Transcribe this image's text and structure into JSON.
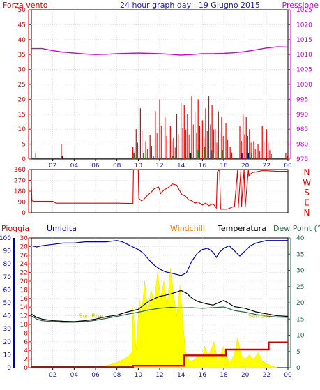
{
  "title": "24 hour graph day : 19 Giugno 2015",
  "x_tick_labels": [
    "02",
    "04",
    "06",
    "08",
    "10",
    "12",
    "14",
    "16",
    "18",
    "20",
    "22",
    "00"
  ],
  "colors": {
    "axis_red": "#dd0000",
    "wind": "#ee0000",
    "gust_green": "#009900",
    "gust_blue": "#0000aa",
    "pressure": "#cc00cc",
    "direction": "#dd0000",
    "humidity": "#0000aa",
    "temperature": "#000000",
    "dewpoint": "#226644",
    "solar": "#ffff00",
    "rain": "#cc0000",
    "windchill_label": "#dd7700",
    "humidity_axis": "#0000aa",
    "dewpoint_axis": "#226644"
  },
  "chart_data": [
    {
      "type": "line",
      "name": "wind-pressure",
      "left_label": "Forza vento",
      "right_label": "Pressione",
      "left_ticks": [
        "50",
        "45",
        "40",
        "35",
        "30",
        "25",
        "20",
        "15",
        "10",
        "5",
        "0"
      ],
      "right_ticks": [
        "1025",
        "1020",
        "1015",
        "1010",
        "1005",
        "1000",
        "995",
        "990",
        "985",
        "980",
        "975"
      ],
      "left_ylim": [
        0,
        50
      ],
      "right_ylim": [
        975,
        1025
      ],
      "xlim_hours": [
        0,
        24
      ],
      "grid": true,
      "series": [
        {
          "key": "pressure",
          "axis": "right",
          "x": [
            0,
            1,
            2,
            3,
            4,
            5,
            6,
            7,
            8,
            9,
            10,
            11,
            12,
            13,
            14,
            15,
            16,
            17,
            18,
            19,
            20,
            21,
            22,
            23,
            24
          ],
          "values": [
            1012,
            1012,
            1011.3,
            1010.8,
            1010.5,
            1010.2,
            1010,
            1010.1,
            1010.3,
            1010.4,
            1010.5,
            1010.4,
            1010.3,
            1010.1,
            1009.8,
            1010,
            1010.3,
            1010.3,
            1010.4,
            1010.6,
            1011,
            1011.6,
            1012.2,
            1012.6,
            1012.5
          ]
        },
        {
          "key": "wind",
          "style": "spikes",
          "x": [
            0.4,
            2.8,
            9.5,
            9.8,
            10.2,
            10.7,
            11.1,
            11.6,
            12.0,
            12.5,
            13.0,
            13.3,
            13.6,
            14.0,
            14.3,
            14.6,
            15.0,
            15.3,
            15.6,
            16.0,
            16.3,
            16.6,
            16.9,
            17.2,
            17.5,
            17.8,
            18.2,
            18.6,
            19.5,
            19.8,
            20.1,
            20.4,
            20.8,
            21.2,
            21.6,
            22.0,
            22.3,
            23.8
          ],
          "values": [
            2,
            5,
            4,
            10,
            17,
            6,
            8,
            16,
            20,
            14,
            11,
            7,
            15,
            19,
            18,
            15,
            21,
            16,
            20,
            13,
            17,
            21,
            18,
            10,
            16,
            14,
            12,
            4,
            11,
            15,
            14,
            10,
            6,
            5,
            11,
            10,
            3,
            2
          ]
        },
        {
          "key": "gust_green",
          "style": "spikes",
          "x": [
            9.6,
            10.5,
            13.2,
            14.8,
            15.6,
            16.2,
            17.0,
            17.9,
            20.6
          ],
          "values": [
            2,
            2,
            1,
            2,
            3,
            4,
            2,
            3,
            2
          ]
        },
        {
          "key": "gust_blue",
          "style": "spikes",
          "x": [
            2.9,
            11.4,
            14.9,
            16.8,
            19.7,
            20.3
          ],
          "values": [
            1,
            1,
            2,
            3,
            2,
            2
          ]
        }
      ]
    },
    {
      "type": "line",
      "name": "wind-direction",
      "left_ticks": [
        "360",
        "270",
        "180",
        "90",
        "0"
      ],
      "right_ticks": [
        "N",
        "W",
        "S",
        "E",
        "N"
      ],
      "ylim": [
        0,
        360
      ],
      "xlim_hours": [
        0,
        24
      ],
      "grid": true,
      "series": [
        {
          "key": "direction",
          "x": [
            0,
            0.05,
            0.3,
            1.0,
            2.0,
            2.3,
            3.0,
            4.0,
            6.0,
            8.0,
            9.5,
            9.55,
            9.7,
            10.0,
            10.05,
            10.3,
            10.5,
            10.9,
            11.2,
            11.5,
            11.9,
            12.1,
            12.4,
            12.8,
            13.2,
            13.6,
            13.9,
            14.1,
            14.4,
            14.7,
            15.0,
            15.3,
            15.6,
            16.0,
            16.3,
            16.6,
            17.0,
            17.3,
            17.4,
            17.6,
            17.7,
            18.0,
            18.3,
            18.6,
            19.0,
            19.3,
            19.35,
            19.6,
            19.65,
            19.9,
            20.0,
            20.3,
            20.35,
            20.6,
            20.7,
            21.0,
            21.3,
            21.5,
            22.0,
            23.0,
            24.0
          ],
          "values": [
            240,
            100,
            95,
            95,
            95,
            80,
            80,
            80,
            80,
            80,
            78,
            360,
            360,
            360,
            120,
            100,
            110,
            150,
            170,
            200,
            215,
            160,
            190,
            210,
            240,
            230,
            180,
            150,
            140,
            110,
            100,
            80,
            90,
            65,
            80,
            60,
            75,
            40,
            340,
            360,
            30,
            30,
            30,
            40,
            55,
            360,
            40,
            360,
            50,
            360,
            45,
            360,
            310,
            330,
            335,
            340,
            345,
            350,
            350,
            345,
            345
          ]
        }
      ]
    },
    {
      "type": "line",
      "name": "temp-humidity-rain",
      "labels": [
        "Pioggia",
        "Umidita",
        "Windchill",
        "Temperatura",
        "Dew Point (°C"
      ],
      "rain_ticks": [
        "100",
        "90",
        "80",
        "70",
        "60",
        "50",
        "40",
        "30",
        "20",
        "10",
        "0"
      ],
      "left_ticks": [
        "30",
        "28",
        "26",
        "24",
        "22",
        "20",
        "18",
        "16",
        "14",
        "12",
        "10",
        "8",
        "6",
        "4",
        "2",
        "0"
      ],
      "right_ticks": [
        "40",
        "35",
        "30",
        "25",
        "20",
        "15",
        "10",
        "5",
        "0"
      ],
      "left_ylim": [
        0,
        30
      ],
      "right_ylim": [
        0,
        40
      ],
      "xlim_hours": [
        0,
        24
      ],
      "grid": true,
      "annotations": [
        {
          "text": "Sun Rise",
          "x": 5.6,
          "y": 11.5
        },
        {
          "text": "Sun Set",
          "x": 21.3,
          "y": 11.5
        }
      ],
      "series": [
        {
          "key": "humidity",
          "axis": "rain",
          "x": [
            0,
            0.5,
            1,
            2,
            3,
            4,
            5,
            6,
            7,
            8,
            8.5,
            9,
            9.5,
            10,
            10.5,
            11,
            11.5,
            12,
            12.5,
            13,
            13.5,
            14,
            14.5,
            15,
            15.5,
            16,
            16.5,
            17,
            17.3,
            17.6,
            18,
            18.5,
            19,
            19.5,
            20,
            20.5,
            21,
            21.5,
            22,
            23,
            24
          ],
          "values": [
            94,
            93,
            94,
            95,
            96,
            96,
            97,
            97,
            97,
            98,
            97,
            95,
            93,
            91,
            88,
            83,
            79,
            76,
            74,
            73,
            72,
            71,
            73,
            82,
            88,
            91,
            92,
            89,
            85,
            89,
            92,
            94,
            90,
            86,
            90,
            94,
            96,
            97,
            98,
            98,
            98
          ]
        },
        {
          "key": "temperature",
          "axis": "right",
          "x": [
            0,
            0.5,
            1,
            2,
            3,
            4,
            5,
            6,
            7,
            8,
            9,
            10,
            11,
            12,
            12.5,
            13,
            13.5,
            14,
            14.5,
            15,
            15.5,
            16,
            16.5,
            17,
            17.5,
            18,
            19,
            20,
            21,
            22,
            23,
            24
          ],
          "values": [
            16.5,
            15.5,
            15,
            14.5,
            14.3,
            14.2,
            14.5,
            15,
            15.7,
            16.2,
            17.2,
            18,
            20.5,
            22,
            22.3,
            22.7,
            23.2,
            23.8,
            23,
            21.5,
            20.5,
            20,
            19.6,
            19.3,
            20,
            20.7,
            18.8,
            18.3,
            17.2,
            16.6,
            16,
            15.8
          ]
        },
        {
          "key": "dewpoint",
          "axis": "right",
          "x": [
            0,
            0.5,
            1,
            2,
            3,
            4,
            5,
            6,
            7,
            8,
            9,
            10,
            11,
            12,
            13,
            14,
            15,
            16,
            17,
            18,
            19,
            20,
            21,
            22,
            23,
            24
          ],
          "values": [
            16,
            15,
            14.5,
            14.2,
            14,
            14,
            14.2,
            14.6,
            15.2,
            15.8,
            16.5,
            17.1,
            17.8,
            18.3,
            18.6,
            18.4,
            18.5,
            18.3,
            18.5,
            18.7,
            17.6,
            17.1,
            16.4,
            15.9,
            15.6,
            15.5
          ]
        },
        {
          "key": "solar",
          "axis": "left",
          "style": "area",
          "x": [
            5.5,
            6.5,
            7,
            7.5,
            8,
            8.5,
            9,
            9.4,
            9.5,
            9.8,
            10.1,
            10.3,
            10.6,
            10.9,
            11.2,
            11.5,
            11.8,
            12.1,
            12.4,
            12.7,
            13,
            13.3,
            13.6,
            13.9,
            14.2,
            14.4,
            14.6,
            15,
            15.3,
            15.6,
            16,
            16.2,
            16.5,
            16.8,
            17.1,
            17.4,
            17.7,
            18,
            18.3,
            18.6,
            19,
            19.3,
            19.6,
            20,
            20.4,
            20.8,
            21.2,
            21.6,
            22,
            22.5,
            23
          ],
          "values": [
            0,
            0.2,
            0.5,
            0.8,
            1.2,
            1.8,
            2.5,
            3.5,
            14,
            4,
            16,
            12,
            20,
            13,
            18,
            15,
            22,
            16,
            20,
            14,
            23,
            17,
            12,
            19,
            10,
            4,
            2,
            1.5,
            2,
            3,
            2,
            5,
            3,
            4,
            6,
            2,
            3,
            5,
            2,
            1.5,
            3,
            7,
            3,
            2,
            3,
            2,
            3.5,
            1.5,
            1,
            0.4,
            0
          ]
        },
        {
          "key": "rain",
          "axis": "right",
          "style": "step",
          "x": [
            0,
            9.5,
            14.3,
            18.2,
            22.2,
            24
          ],
          "values": [
            0.2,
            0.6,
            3.8,
            5.6,
            7.8,
            7.8
          ]
        }
      ]
    }
  ]
}
